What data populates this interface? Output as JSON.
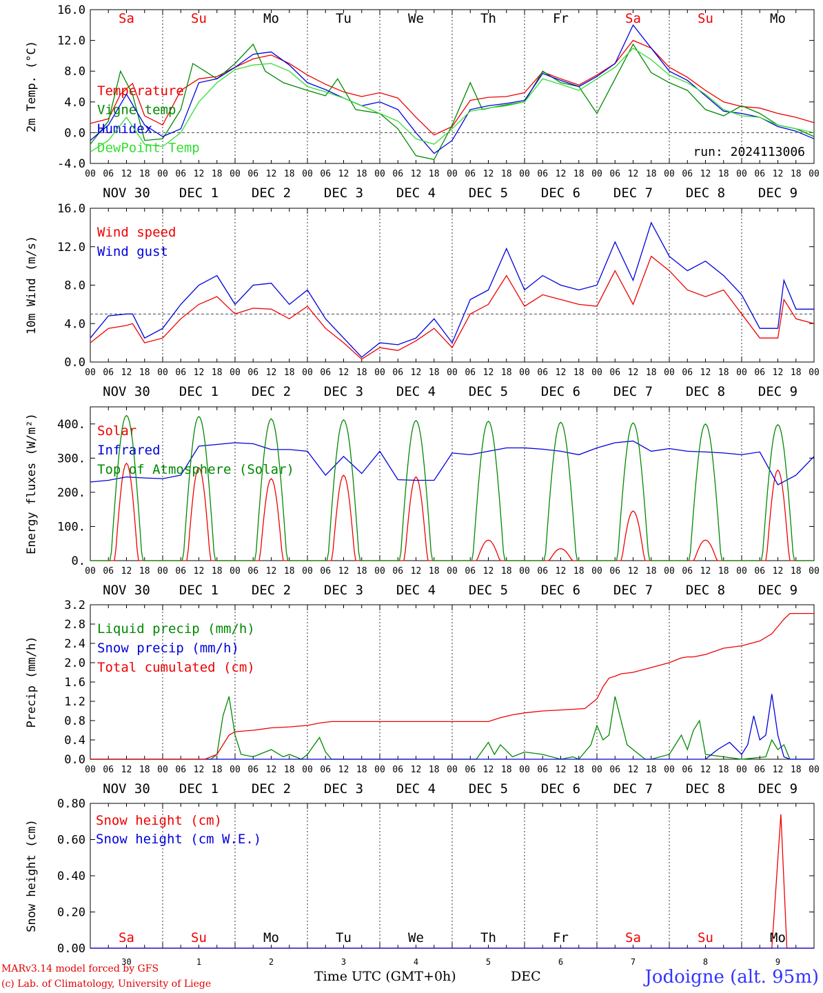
{
  "colors": {
    "red": "#ee0000",
    "green": "#008800",
    "blue": "#0000dd",
    "light_green": "#33dd33",
    "grid": "#444444"
  },
  "day_names": [
    {
      "label": "Sa",
      "color": "#ee0000"
    },
    {
      "label": "Su",
      "color": "#ee0000"
    },
    {
      "label": "Mo",
      "color": "#000000"
    },
    {
      "label": "Tu",
      "color": "#000000"
    },
    {
      "label": "We",
      "color": "#000000"
    },
    {
      "label": "Th",
      "color": "#000000"
    },
    {
      "label": "Fr",
      "color": "#000000"
    },
    {
      "label": "Sa",
      "color": "#ee0000"
    },
    {
      "label": "Su",
      "color": "#ee0000"
    },
    {
      "label": "Mo",
      "color": "#000000"
    }
  ],
  "hour_ticks": [
    "00",
    "06",
    "12",
    "18"
  ],
  "hour_end": "00",
  "date_labels": [
    "NOV 30",
    "DEC  1",
    "DEC  2",
    "DEC  3",
    "DEC  4",
    "DEC  5",
    "DEC  6",
    "DEC  7",
    "DEC  8",
    "DEC  9"
  ],
  "bottom_day_numbers": [
    "30",
    "1",
    "2",
    "3",
    "4",
    "5",
    "6",
    "7",
    "8",
    "9"
  ],
  "footer": {
    "model": "MARv3.14 model forced by GFS",
    "copyright": "(c) Lab. of Climatology, University of Liege",
    "xlabel": "Time UTC (GMT+0h)",
    "month": "DEC",
    "site": "Jodoigne (alt. 95m)"
  },
  "chart_data": [
    {
      "type": "line",
      "ylabel": "2m Temp. (°C)",
      "ylim": [
        -4,
        16
      ],
      "yticks": [
        "-4.0",
        "0.0",
        "4.0",
        "8.0",
        "12.0",
        "16.0"
      ],
      "ytick_values": [
        -4,
        0,
        4,
        8,
        12,
        16
      ],
      "ref_line": 0,
      "annotation": "run: 2024113006",
      "x_unit": "hours since NOV 30 00 UTC",
      "series": [
        {
          "name": "Temperature",
          "color": "#ee0000",
          "x": [
            0,
            6,
            10,
            14,
            18,
            24,
            30,
            36,
            42,
            48,
            54,
            60,
            66,
            72,
            78,
            84,
            90,
            96,
            102,
            108,
            114,
            120,
            126,
            132,
            138,
            144,
            150,
            156,
            162,
            168,
            174,
            180,
            186,
            192,
            198,
            204,
            210,
            216,
            222,
            228,
            234,
            240
          ],
          "y": [
            1.2,
            1.8,
            5.0,
            6.4,
            2.2,
            1.0,
            5.5,
            7.0,
            7.3,
            8.5,
            9.6,
            10.1,
            9.0,
            7.5,
            6.3,
            5.3,
            4.7,
            5.2,
            4.5,
            2.0,
            -0.3,
            0.8,
            4.2,
            4.6,
            4.7,
            5.2,
            7.9,
            7.0,
            6.2,
            7.5,
            9.0,
            12.0,
            11.0,
            8.5,
            7.2,
            5.5,
            4.0,
            3.4,
            3.2,
            2.5,
            2.0,
            1.3
          ]
        },
        {
          "name": "Vigne temp",
          "color": "#008800",
          "x": [
            0,
            6,
            10,
            14,
            18,
            24,
            30,
            34,
            42,
            48,
            54,
            58,
            64,
            72,
            78,
            82,
            88,
            96,
            102,
            108,
            114,
            120,
            126,
            130,
            136,
            144,
            150,
            156,
            162,
            168,
            174,
            180,
            186,
            192,
            198,
            204,
            210,
            216,
            222,
            228,
            234,
            240
          ],
          "y": [
            -1.5,
            1.5,
            8.0,
            5.0,
            -1.0,
            -0.8,
            3.0,
            9.0,
            7.0,
            9.0,
            11.5,
            8.0,
            6.5,
            5.5,
            4.8,
            7.0,
            3.0,
            2.5,
            0.5,
            -3.0,
            -3.5,
            1.0,
            6.5,
            3.0,
            3.5,
            4.0,
            8.0,
            6.5,
            6.0,
            2.5,
            7.0,
            11.5,
            7.8,
            6.5,
            5.5,
            3.0,
            2.2,
            3.5,
            2.5,
            1.0,
            0.5,
            -0.5
          ]
        },
        {
          "name": "Humidex",
          "color": "#0000dd",
          "x": [
            0,
            6,
            12,
            18,
            24,
            30,
            36,
            42,
            48,
            54,
            60,
            66,
            72,
            78,
            84,
            90,
            96,
            102,
            108,
            114,
            120,
            126,
            132,
            138,
            144,
            150,
            156,
            162,
            168,
            174,
            180,
            186,
            192,
            198,
            204,
            210,
            216,
            222,
            228,
            234,
            240
          ],
          "y": [
            -1.0,
            1.0,
            5.0,
            1.0,
            -0.5,
            0.5,
            6.5,
            7.0,
            8.5,
            10.2,
            10.5,
            8.8,
            6.5,
            5.6,
            4.5,
            3.5,
            4.0,
            3.0,
            0.0,
            -2.7,
            -1.0,
            3.0,
            3.5,
            3.8,
            4.2,
            7.7,
            6.8,
            6.0,
            7.3,
            9.0,
            14.0,
            11.0,
            8.0,
            6.8,
            4.8,
            2.8,
            2.5,
            2.0,
            0.8,
            0.2,
            -0.8
          ]
        },
        {
          "name": "DewPoint Temp",
          "color": "#33dd33",
          "x": [
            0,
            6,
            12,
            18,
            24,
            30,
            36,
            42,
            48,
            54,
            60,
            66,
            72,
            78,
            84,
            90,
            96,
            102,
            108,
            114,
            120,
            126,
            132,
            138,
            144,
            150,
            156,
            162,
            168,
            174,
            180,
            186,
            192,
            198,
            204,
            210,
            216,
            222,
            228,
            234,
            240
          ],
          "y": [
            -2.5,
            -1.0,
            2.0,
            -1.5,
            -1.8,
            0.0,
            4.0,
            6.5,
            8.2,
            8.8,
            9.0,
            8.0,
            6.0,
            5.3,
            4.5,
            3.5,
            2.5,
            1.5,
            -0.8,
            -1.5,
            0.5,
            2.8,
            3.2,
            3.5,
            4.0,
            7.0,
            6.3,
            5.5,
            7.0,
            8.5,
            11.0,
            9.5,
            7.5,
            6.5,
            5.0,
            3.0,
            2.2,
            2.0,
            1.0,
            0.5,
            0.0
          ]
        }
      ]
    },
    {
      "type": "line",
      "ylabel": "10m Wind (m/s)",
      "ylim": [
        0,
        16
      ],
      "yticks": [
        "0.0",
        "4.0",
        "8.0",
        "12.0",
        "16.0"
      ],
      "ytick_values": [
        0,
        4,
        8,
        12,
        16
      ],
      "ref_line": 5,
      "x_unit": "hours since NOV 30 00 UTC",
      "series": [
        {
          "name": "Wind speed",
          "color": "#ee0000",
          "x": [
            0,
            6,
            12,
            14,
            18,
            24,
            30,
            36,
            42,
            48,
            54,
            60,
            66,
            72,
            78,
            84,
            90,
            96,
            102,
            108,
            114,
            120,
            126,
            132,
            138,
            144,
            150,
            156,
            162,
            168,
            174,
            180,
            186,
            192,
            198,
            204,
            210,
            216,
            222,
            228,
            230,
            234,
            240
          ],
          "y": [
            2.0,
            3.5,
            3.8,
            4.0,
            2.0,
            2.5,
            4.5,
            6.0,
            6.8,
            5.0,
            5.6,
            5.5,
            4.5,
            5.8,
            3.5,
            2.0,
            0.3,
            1.5,
            1.2,
            2.2,
            3.5,
            1.5,
            5.0,
            6.0,
            9.0,
            5.8,
            7.0,
            6.5,
            6.0,
            5.8,
            9.5,
            6.0,
            11.0,
            9.5,
            7.5,
            6.8,
            7.5,
            5.0,
            2.5,
            2.5,
            6.5,
            4.5,
            4.0
          ]
        },
        {
          "name": "Wind gust",
          "color": "#0000dd",
          "x": [
            0,
            6,
            12,
            14,
            18,
            24,
            30,
            36,
            42,
            48,
            54,
            60,
            66,
            72,
            78,
            84,
            90,
            96,
            102,
            108,
            114,
            120,
            126,
            132,
            138,
            144,
            150,
            156,
            162,
            168,
            174,
            180,
            186,
            192,
            198,
            204,
            210,
            216,
            222,
            228,
            230,
            234,
            240
          ],
          "y": [
            2.5,
            4.8,
            5.0,
            5.0,
            2.5,
            3.5,
            6.0,
            8.0,
            9.0,
            6.0,
            8.0,
            8.2,
            6.0,
            7.5,
            4.5,
            2.5,
            0.5,
            2.0,
            1.8,
            2.5,
            4.5,
            2.0,
            6.5,
            7.5,
            11.8,
            7.5,
            9.0,
            8.0,
            7.5,
            8.0,
            12.5,
            8.5,
            14.5,
            11.0,
            9.5,
            10.5,
            9.0,
            7.0,
            3.5,
            3.5,
            8.5,
            5.5,
            5.5
          ]
        }
      ]
    },
    {
      "type": "line",
      "ylabel": "Energy fluxes (W/m²)",
      "ylim": [
        0,
        450
      ],
      "yticks": [
        "0.",
        "100.",
        "200.",
        "300.",
        "400."
      ],
      "ytick_values": [
        0,
        100,
        200,
        300,
        400
      ],
      "x_unit": "hours since NOV 30 00 UTC",
      "series": [
        {
          "name": "Solar",
          "color": "#ee0000",
          "daily_peaks_w_m2": [
            285,
            272,
            240,
            250,
            245,
            60,
            35,
            145,
            60,
            265
          ]
        },
        {
          "name": "Infrared",
          "color": "#0000dd",
          "x": [
            0,
            6,
            12,
            18,
            24,
            30,
            36,
            42,
            48,
            54,
            60,
            66,
            72,
            78,
            84,
            90,
            96,
            102,
            108,
            114,
            120,
            126,
            132,
            138,
            144,
            150,
            156,
            162,
            168,
            174,
            180,
            186,
            192,
            198,
            204,
            210,
            216,
            222,
            228,
            234,
            240
          ],
          "y": [
            230,
            235,
            245,
            242,
            240,
            250,
            335,
            340,
            345,
            342,
            325,
            325,
            320,
            250,
            305,
            255,
            320,
            237,
            235,
            235,
            315,
            310,
            320,
            330,
            330,
            326,
            320,
            310,
            330,
            345,
            350,
            320,
            328,
            320,
            318,
            315,
            310,
            318,
            222,
            250,
            305
          ]
        },
        {
          "name": "Top of Atmosphere (Solar)",
          "color": "#008800",
          "daily_peaks_w_m2": [
            425,
            422,
            415,
            412,
            410,
            408,
            405,
            403,
            400,
            398
          ]
        }
      ]
    },
    {
      "type": "line",
      "ylabel": "Precip (mm/h)",
      "ylim": [
        0,
        3.2
      ],
      "yticks": [
        "0.0",
        "0.4",
        "0.8",
        "1.2",
        "1.6",
        "2.0",
        "2.4",
        "2.8",
        "3.2"
      ],
      "ytick_values": [
        0,
        0.4,
        0.8,
        1.2,
        1.6,
        2.0,
        2.4,
        2.8,
        3.2
      ],
      "x_unit": "hours since NOV 30 00 UTC",
      "series": [
        {
          "name": "Liquid precip (mm/h)",
          "color": "#008800",
          "x": [
            0,
            40,
            42,
            44,
            46,
            48,
            50,
            54,
            58,
            60,
            64,
            66,
            70,
            72,
            76,
            78,
            80,
            84,
            90,
            96,
            120,
            128,
            132,
            134,
            136,
            140,
            144,
            150,
            156,
            160,
            162,
            166,
            168,
            170,
            172,
            174,
            178,
            180,
            184,
            186,
            192,
            194,
            196,
            198,
            200,
            202,
            204,
            216,
            224,
            226,
            228,
            230,
            232,
            240
          ],
          "y": [
            0,
            0,
            0.1,
            0.9,
            1.3,
            0.5,
            0.1,
            0.05,
            0.15,
            0.2,
            0.05,
            0.1,
            0.0,
            0.1,
            0.45,
            0.15,
            0.0,
            0.0,
            0.0,
            0.0,
            0.0,
            0.0,
            0.35,
            0.1,
            0.3,
            0.05,
            0.15,
            0.1,
            0.0,
            0.05,
            0.0,
            0.3,
            0.7,
            0.4,
            0.5,
            1.3,
            0.3,
            0.2,
            0.0,
            0.0,
            0.1,
            0.3,
            0.5,
            0.2,
            0.6,
            0.8,
            0.1,
            0.0,
            0.05,
            0.4,
            0.2,
            0.3,
            0.0,
            0.0
          ]
        },
        {
          "name": "Snow precip (mm/h)",
          "color": "#0000dd",
          "x": [
            0,
            196,
            204,
            208,
            212,
            216,
            218,
            220,
            222,
            224,
            226,
            228,
            230,
            232,
            240
          ],
          "y": [
            0,
            0,
            0.0,
            0.2,
            0.35,
            0.1,
            0.3,
            0.9,
            0.4,
            0.5,
            1.35,
            0.5,
            0.05,
            0.0,
            0.0
          ]
        },
        {
          "name": "Total cumulated (cm)",
          "color": "#ee0000",
          "x": [
            0,
            38,
            42,
            44,
            46,
            48,
            54,
            60,
            66,
            72,
            76,
            80,
            84,
            96,
            120,
            132,
            136,
            140,
            144,
            150,
            156,
            164,
            168,
            170,
            172,
            174,
            176,
            180,
            186,
            192,
            196,
            198,
            200,
            204,
            210,
            216,
            222,
            226,
            228,
            230,
            232,
            240
          ],
          "y": [
            0,
            0,
            0.1,
            0.3,
            0.5,
            0.57,
            0.6,
            0.65,
            0.67,
            0.7,
            0.75,
            0.78,
            0.78,
            0.78,
            0.78,
            0.78,
            0.86,
            0.92,
            0.96,
            1.0,
            1.02,
            1.05,
            1.25,
            1.5,
            1.68,
            1.72,
            1.77,
            1.8,
            1.9,
            2.0,
            2.1,
            2.12,
            2.12,
            2.17,
            2.3,
            2.35,
            2.45,
            2.6,
            2.75,
            2.9,
            3.02,
            3.02
          ]
        }
      ]
    },
    {
      "type": "line",
      "ylabel": "Snow height (cm)",
      "ylim": [
        0,
        0.8
      ],
      "yticks": [
        "0.00",
        "0.20",
        "0.40",
        "0.60",
        "0.80"
      ],
      "ytick_values": [
        0,
        0.2,
        0.4,
        0.6,
        0.8
      ],
      "x_unit": "hours since NOV 30 00 UTC",
      "series": [
        {
          "name": "Snow height (cm)",
          "color": "#ee0000",
          "x": [
            0,
            226,
            229,
            231,
            232,
            240
          ],
          "y": [
            0,
            0,
            0.74,
            0,
            0,
            0
          ]
        },
        {
          "name": "Snow height (cm W.E.)",
          "color": "#0000dd",
          "x": [
            0,
            240
          ],
          "y": [
            0,
            0
          ]
        }
      ]
    }
  ]
}
